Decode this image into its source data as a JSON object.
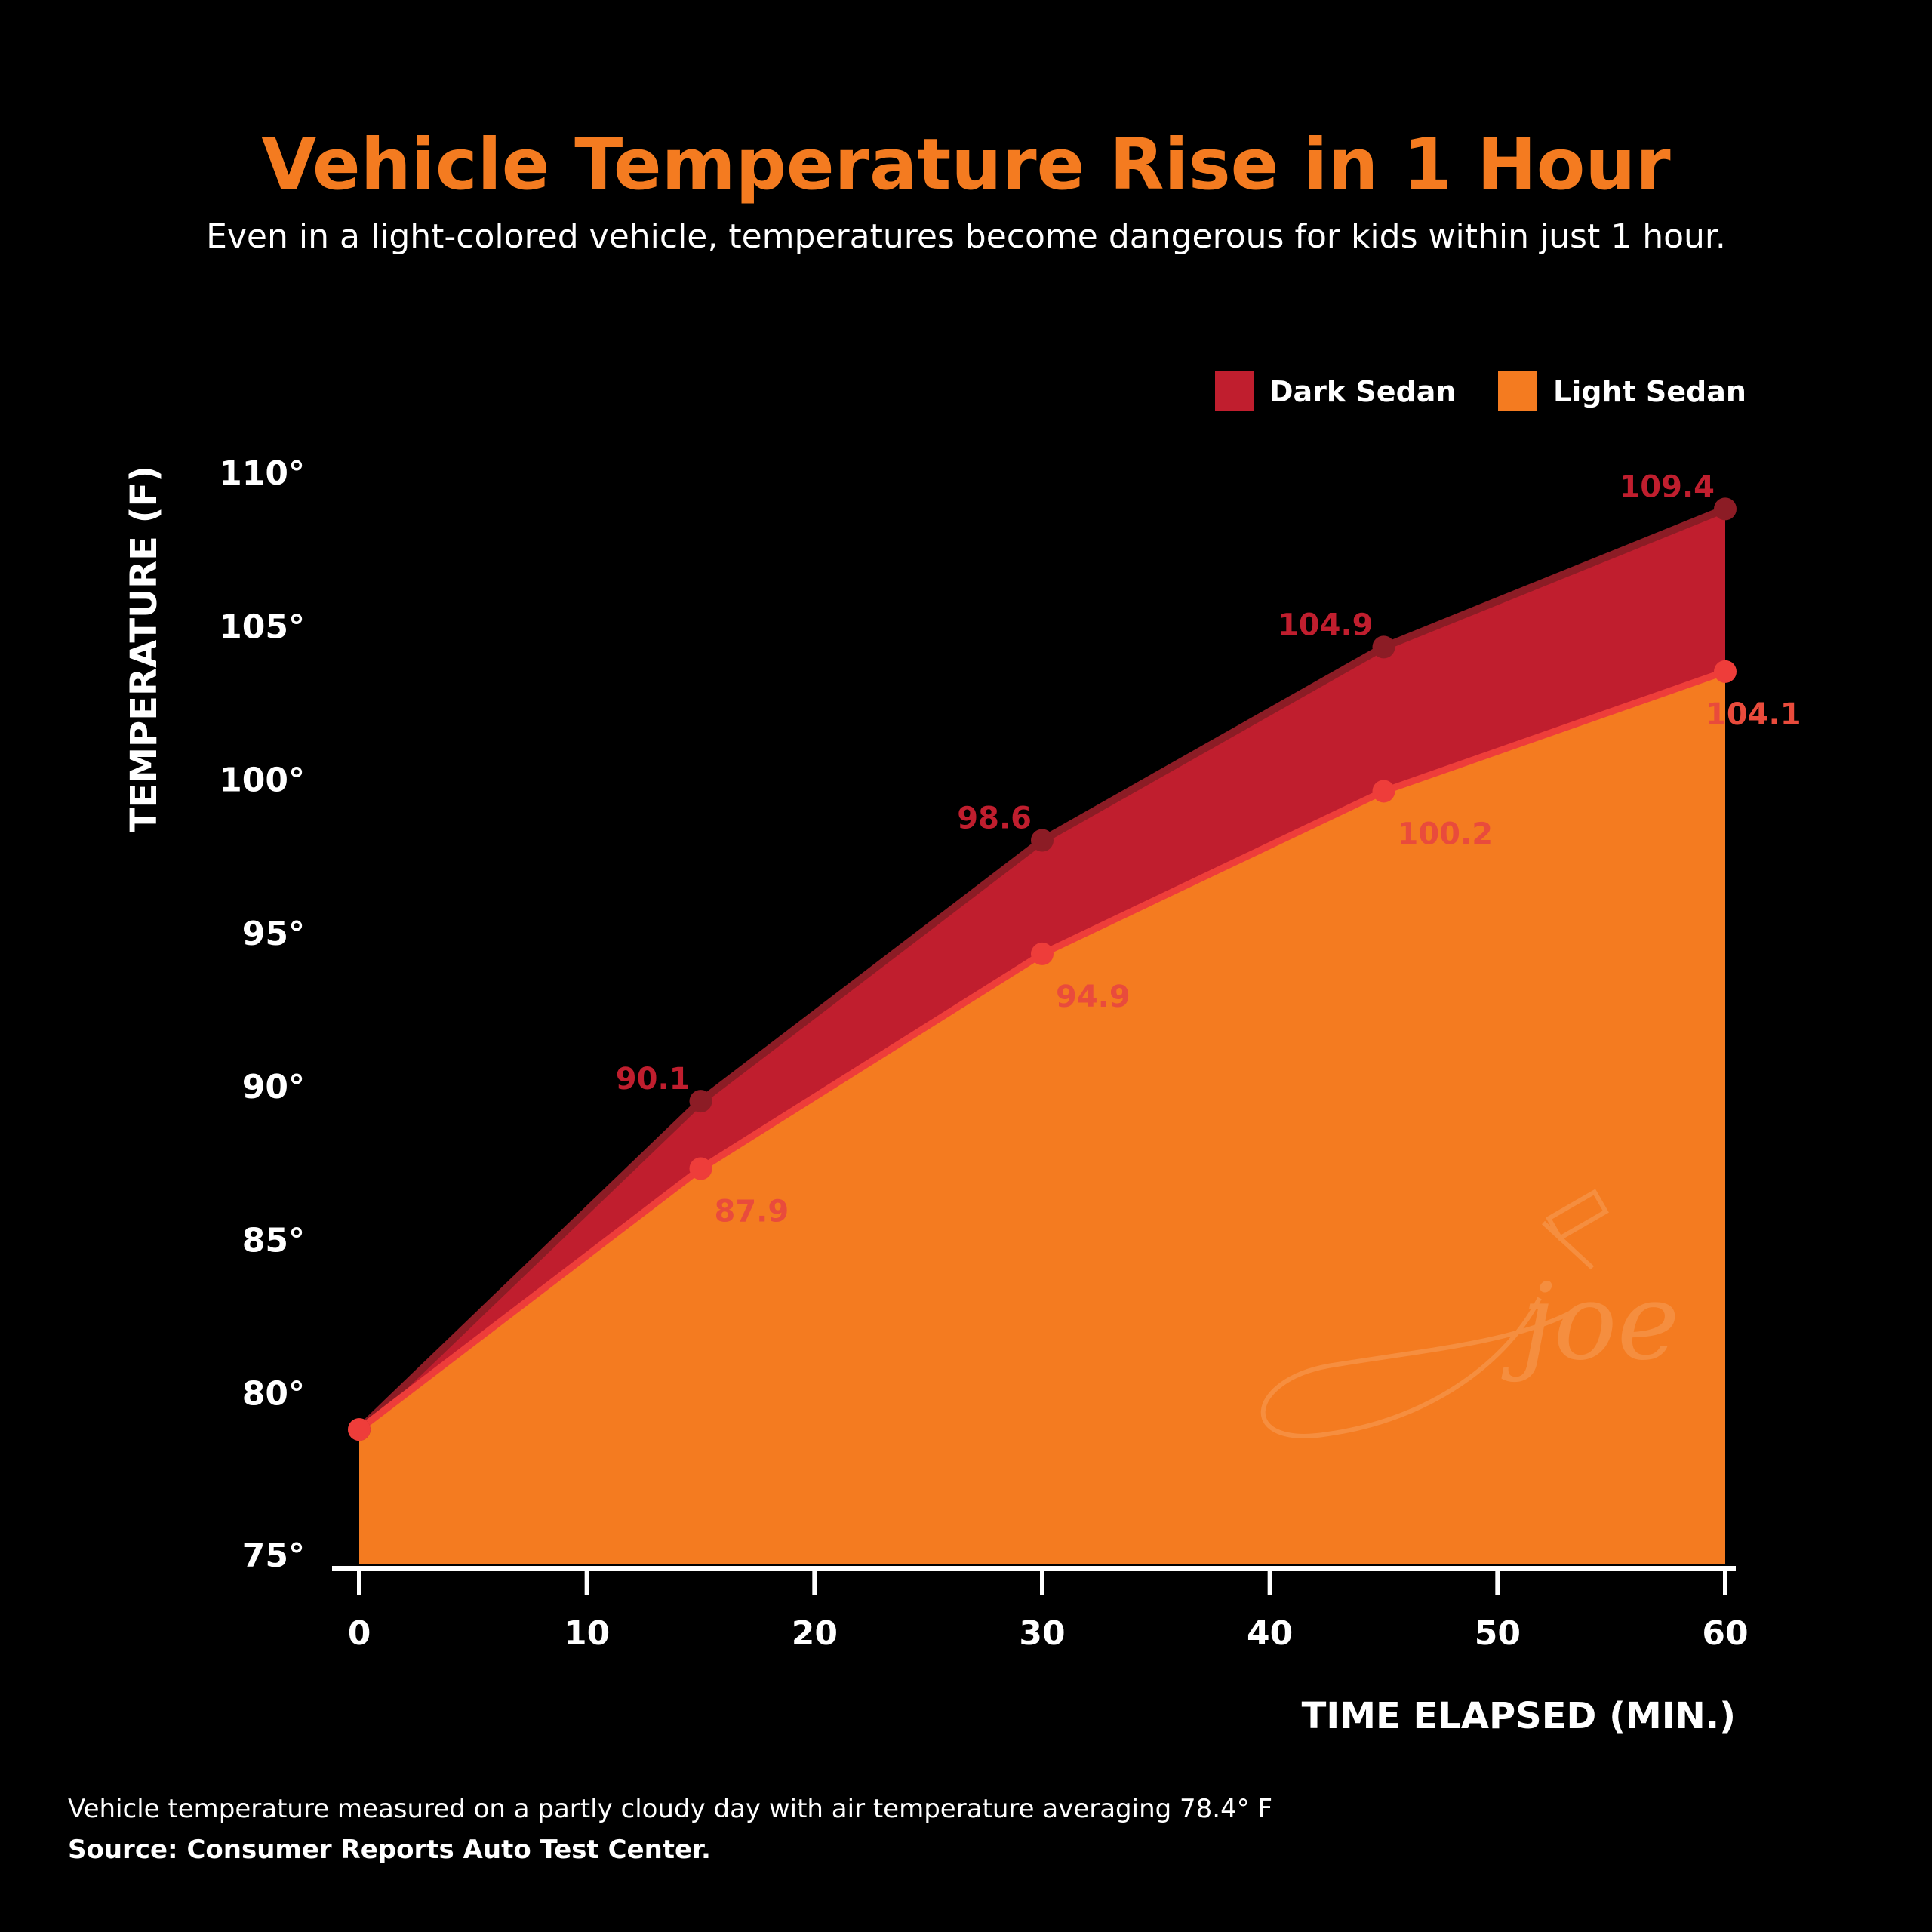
{
  "colors": {
    "dark_sedan": "#c01e2e",
    "dark_sedan_line": "#8c1c25",
    "light_sedan": "#f47b20",
    "light_sedan_line": "#ee3d3a",
    "light_label": "#e94b3c",
    "title": "#f47b20",
    "background": "#000000"
  },
  "chart_data": {
    "type": "area",
    "title": "Vehicle Temperature Rise in 1 Hour",
    "subtitle": "Even in a light-colored vehicle, temperatures become dangerous for kids within just 1 hour.",
    "xlabel": "TIME ELAPSED (MIN.)",
    "ylabel": "TEMPERATURE (F)",
    "xlim": [
      0,
      60
    ],
    "ylim": [
      75,
      110
    ],
    "x_ticks": [
      0,
      10,
      20,
      30,
      40,
      50,
      60
    ],
    "x_tick_labels": [
      "0",
      "10",
      "20",
      "30",
      "40",
      "50",
      "60"
    ],
    "y_ticks": [
      75,
      80,
      85,
      90,
      95,
      100,
      105,
      110
    ],
    "y_tick_labels": [
      "75°",
      "80°",
      "85°",
      "90°",
      "95°",
      "100°",
      "105°",
      "110°"
    ],
    "x": [
      0,
      15,
      30,
      45,
      60
    ],
    "series": [
      {
        "name": "Dark Sedan",
        "values": [
          79.4,
          90.1,
          98.6,
          104.9,
          109.4
        ],
        "data_labels": [
          "",
          "90.1",
          "98.6",
          "104.9",
          "109.4"
        ]
      },
      {
        "name": "Light Sedan",
        "values": [
          79.4,
          87.9,
          94.9,
          100.2,
          104.1
        ],
        "data_labels": [
          "",
          "87.9",
          "94.9",
          "100.2",
          "104.1"
        ]
      }
    ],
    "legend_position": "top-right",
    "grid": false,
    "watermark": "joe"
  },
  "footnote": "Vehicle temperature measured on a partly cloudy day with air temperature averaging 78.4° F",
  "source": "Source: Consumer Reports Auto Test Center."
}
